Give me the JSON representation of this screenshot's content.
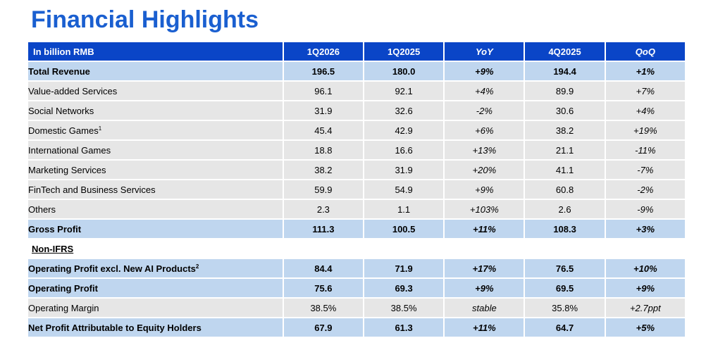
{
  "title": "Financial Highlights",
  "colors": {
    "title": "#1a5fd0",
    "header_bg": "#0a45c7",
    "highlight_row": "#bfd6ef",
    "normal_row": "#e6e6e6"
  },
  "table": {
    "header": [
      "In billion RMB",
      "1Q2026",
      "1Q2025",
      "YoY",
      "4Q2025",
      "QoQ"
    ],
    "rows": [
      {
        "label": "Total Revenue",
        "sup": "",
        "c1": "196.5",
        "c2": "180.0",
        "yoy": "+9%",
        "c4": "194.4",
        "qoq": "+1%"
      },
      {
        "label": "Value-added Services",
        "sup": "",
        "c1": "96.1",
        "c2": "92.1",
        "yoy": "+4%",
        "c4": "89.9",
        "qoq": "+7%"
      },
      {
        "label": "Social Networks",
        "sup": "",
        "c1": "31.9",
        "c2": "32.6",
        "yoy": "-2%",
        "c4": "30.6",
        "qoq": "+4%"
      },
      {
        "label": "Domestic Games",
        "sup": "1",
        "c1": "45.4",
        "c2": "42.9",
        "yoy": "+6%",
        "c4": "38.2",
        "qoq": "+19%"
      },
      {
        "label": "International Games",
        "sup": "",
        "c1": "18.8",
        "c2": "16.6",
        "yoy": "+13%",
        "c4": "21.1",
        "qoq": "-11%"
      },
      {
        "label": "Marketing Services",
        "sup": "",
        "c1": "38.2",
        "c2": "31.9",
        "yoy": "+20%",
        "c4": "41.1",
        "qoq": "-7%"
      },
      {
        "label": "FinTech and Business Services",
        "sup": "",
        "c1": "59.9",
        "c2": "54.9",
        "yoy": "+9%",
        "c4": "60.8",
        "qoq": "-2%"
      },
      {
        "label": "Others",
        "sup": "",
        "c1": "2.3",
        "c2": "1.1",
        "yoy": "+103%",
        "c4": "2.6",
        "qoq": "-9%"
      },
      {
        "label": "Gross Profit",
        "sup": "",
        "c1": "111.3",
        "c2": "100.5",
        "yoy": "+11%",
        "c4": "108.3",
        "qoq": "+3%"
      },
      {
        "label": "Non-IFRS"
      },
      {
        "label": "Operating Profit excl. New AI Products",
        "sup": "2",
        "c1": "84.4",
        "c2": "71.9",
        "yoy": "+17%",
        "c4": "76.5",
        "qoq": "+10%"
      },
      {
        "label": "Operating Profit",
        "sup": "",
        "c1": "75.6",
        "c2": "69.3",
        "yoy": "+9%",
        "c4": "69.5",
        "qoq": "+9%"
      },
      {
        "label": "Operating Margin",
        "sup": "",
        "c1": "38.5%",
        "c2": "38.5%",
        "yoy": "stable",
        "c4": "35.8%",
        "qoq": "+2.7ppt"
      },
      {
        "label": "Net Profit Attributable to Equity Holders",
        "sup": "",
        "c1": "67.9",
        "c2": "61.3",
        "yoy": "+11%",
        "c4": "64.7",
        "qoq": "+5%"
      }
    ]
  }
}
